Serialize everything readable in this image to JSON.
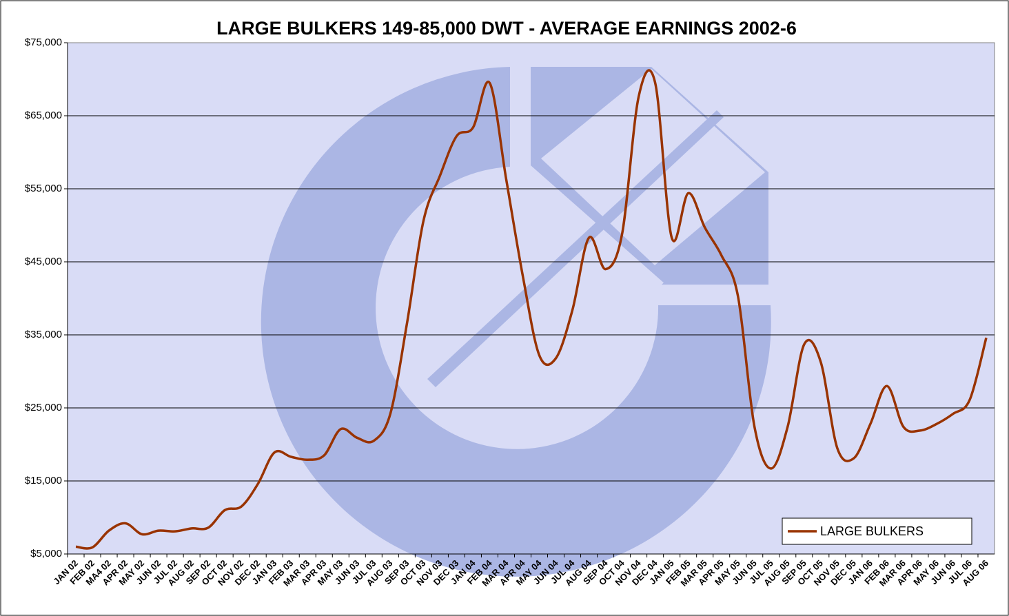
{
  "chart_data": {
    "type": "line",
    "title": "LARGE BULKERS 149-85,000 DWT -  AVERAGE EARNINGS 2002-6",
    "categories": [
      "JAN 02",
      "FEB 02",
      "MA4 02",
      "APR 02",
      "MAY 02",
      "JUN 02",
      "JUL 02",
      "AUG 02",
      "SEP 02",
      "OCT 02",
      "NOV 02",
      "DEC 02",
      "JAN 03",
      "FEB 03",
      "MAR 03",
      "APR 03",
      "MAY 03",
      "JUN 03",
      "JUL 03",
      "AUG 03",
      "SEP 03",
      "OCT 03",
      "NOV 03",
      "DEC 03",
      "JAN 04",
      "FEB 04",
      "MAR 04",
      "APR 04",
      "MAY 04",
      "JUN 04",
      "JUL 04",
      "AUG 04",
      "SEP 04",
      "OCT 04",
      "NOV 04",
      "DEC 04",
      "JAN 05",
      "FEB 05",
      "MAR 05",
      "APR 05",
      "MAY 05",
      "JUN 05",
      "JUL 05",
      "AUG 05",
      "SEP 05",
      "OCT 05",
      "NOV 05",
      "DEC 05",
      "JAN 06",
      "FEB 06",
      "MAR 06",
      "APR 06",
      "MAY 06",
      "JUN 06",
      "JUL 06",
      "AUG 06"
    ],
    "series": [
      {
        "name": "LARGE BULKERS",
        "color": "#993300",
        "values": [
          6000,
          5900,
          8200,
          9200,
          7700,
          8200,
          8100,
          8500,
          8600,
          11000,
          11500,
          14600,
          18900,
          18300,
          17900,
          18500,
          22100,
          20900,
          20500,
          24200,
          36500,
          50600,
          56800,
          62200,
          63400,
          69500,
          56300,
          43100,
          32200,
          31800,
          38400,
          48300,
          44000,
          48800,
          67600,
          69500,
          48300,
          54400,
          49700,
          45900,
          40300,
          22400,
          16700,
          22400,
          33700,
          31300,
          19500,
          18100,
          22800,
          28000,
          22400,
          21900,
          22800,
          24200,
          26100,
          34600
        ]
      }
    ],
    "ylim": [
      5000,
      75000
    ],
    "yticks": [
      {
        "value": 5000,
        "label": "$5,000"
      },
      {
        "value": 15000,
        "label": "$15,000"
      },
      {
        "value": 25000,
        "label": "$25,000"
      },
      {
        "value": 35000,
        "label": "$35,000"
      },
      {
        "value": 45000,
        "label": "$45,000"
      },
      {
        "value": 55000,
        "label": "$55,000"
      },
      {
        "value": 65000,
        "label": "$65,000"
      },
      {
        "value": 75000,
        "label": "$75,000"
      }
    ],
    "grid": true,
    "legend": "lower right"
  }
}
